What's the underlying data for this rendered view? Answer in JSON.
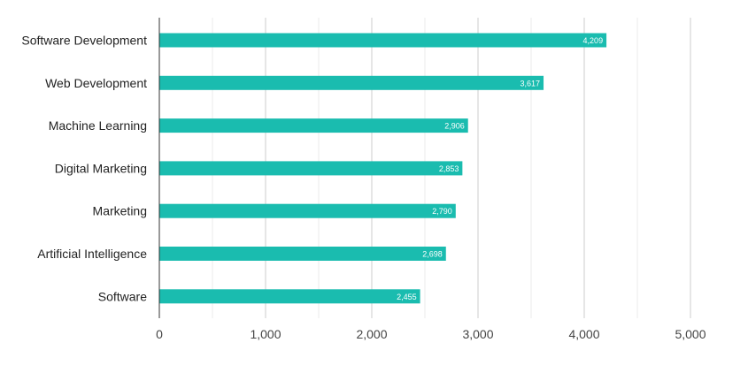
{
  "chart_data": {
    "type": "bar",
    "orientation": "horizontal",
    "categories": [
      "Software Development",
      "Web Development",
      "Machine Learning",
      "Digital Marketing",
      "Marketing",
      "Artificial Intelligence",
      "Software"
    ],
    "values": [
      4209,
      3617,
      2906,
      2853,
      2790,
      2698,
      2455
    ],
    "value_labels": [
      "4,209",
      "3,617",
      "2,906",
      "2,853",
      "2,790",
      "2,698",
      "2,455"
    ],
    "x_ticks": [
      "0",
      "1,000",
      "2,000",
      "3,000",
      "4,000",
      "5,000"
    ],
    "xlim": [
      0,
      5000
    ],
    "title": "",
    "xlabel": "",
    "ylabel": "",
    "grid": "vertical",
    "legend": "none",
    "bar_color": "#1abcaf"
  }
}
